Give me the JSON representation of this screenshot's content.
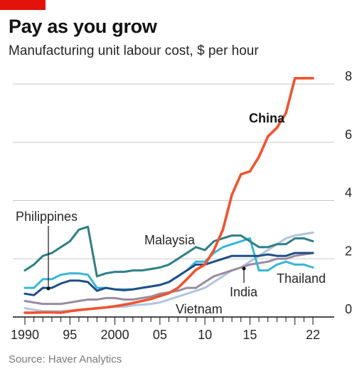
{
  "title": "Pay as you grow",
  "subtitle": "Manufacturing unit labour cost, $ per hour",
  "source": "Source: Haver Analytics",
  "colors": {
    "brand": "#e3120b",
    "China": "#f0532f",
    "Malaysia": "#2e7f86",
    "Philippines": "#1f4f86",
    "Thailand": "#3ab5d6",
    "India": "#9a8ba0",
    "Vietnam": "#b1c4de",
    "grid": "#c7c7c7"
  },
  "chart_data": {
    "type": "line",
    "title": "Pay as you grow",
    "ylabel": "Manufacturing unit labour cost, $ per hour",
    "xlim": [
      1990,
      2022
    ],
    "ylim": [
      0,
      8
    ],
    "yticks": [
      0,
      2,
      4,
      6,
      8
    ],
    "xticks": [
      1990,
      1995,
      2000,
      2005,
      2010,
      2015,
      2022
    ],
    "xtick_labels": [
      "1990",
      "95",
      "2000",
      "05",
      "10",
      "15",
      "22"
    ],
    "grid": true,
    "x": [
      1990,
      1991,
      1992,
      1993,
      1994,
      1995,
      1996,
      1997,
      1998,
      1999,
      2000,
      2001,
      2002,
      2003,
      2004,
      2005,
      2006,
      2007,
      2008,
      2009,
      2010,
      2011,
      2012,
      2013,
      2014,
      2015,
      2016,
      2017,
      2018,
      2019,
      2020,
      2021,
      2022
    ],
    "series": [
      {
        "name": "China",
        "values": [
          0.15,
          0.15,
          0.16,
          0.16,
          0.15,
          0.2,
          0.24,
          0.27,
          0.3,
          0.33,
          0.37,
          0.42,
          0.48,
          0.55,
          0.62,
          0.72,
          0.82,
          1.0,
          1.3,
          1.62,
          1.8,
          2.3,
          3.0,
          4.2,
          4.9,
          5.0,
          5.5,
          6.2,
          6.5,
          7.0,
          8.2,
          8.2,
          8.2
        ]
      },
      {
        "name": "Malaysia",
        "values": [
          1.6,
          1.8,
          2.1,
          2.2,
          2.4,
          2.6,
          3.0,
          3.1,
          1.4,
          1.5,
          1.55,
          1.55,
          1.6,
          1.6,
          1.65,
          1.7,
          1.8,
          2.0,
          2.2,
          2.4,
          2.3,
          2.6,
          2.7,
          2.8,
          2.8,
          2.6,
          2.4,
          2.4,
          2.5,
          2.5,
          2.7,
          2.7,
          2.6
        ]
      },
      {
        "name": "Philippines",
        "values": [
          0.8,
          0.75,
          1.0,
          1.0,
          1.15,
          1.25,
          1.25,
          1.2,
          0.9,
          1.0,
          0.95,
          0.92,
          0.95,
          1.0,
          1.05,
          1.1,
          1.2,
          1.4,
          1.6,
          1.8,
          1.8,
          1.9,
          2.0,
          2.1,
          2.1,
          2.1,
          2.1,
          2.15,
          2.1,
          2.1,
          2.2,
          2.2,
          2.2
        ]
      },
      {
        "name": "Thailand",
        "values": [
          1.0,
          1.0,
          1.3,
          1.3,
          1.45,
          1.5,
          1.5,
          1.45,
          1.0,
          1.0,
          0.95,
          0.95,
          0.95,
          1.0,
          1.05,
          1.1,
          1.2,
          1.4,
          1.6,
          1.9,
          1.9,
          2.2,
          2.4,
          2.5,
          2.6,
          2.7,
          1.6,
          1.6,
          1.8,
          1.9,
          1.8,
          1.8,
          1.7
        ]
      },
      {
        "name": "India",
        "values": [
          0.55,
          0.5,
          0.45,
          0.45,
          0.45,
          0.5,
          0.55,
          0.6,
          0.6,
          0.65,
          0.65,
          0.6,
          0.6,
          0.65,
          0.7,
          0.8,
          0.85,
          0.9,
          1.0,
          1.0,
          1.2,
          1.4,
          1.5,
          1.6,
          1.7,
          1.8,
          1.85,
          1.9,
          2.0,
          2.0,
          2.1,
          2.15,
          2.2
        ]
      },
      {
        "name": "Vietnam",
        "values": [
          0.3,
          0.25,
          0.2,
          0.2,
          0.2,
          0.22,
          0.25,
          0.28,
          0.3,
          0.32,
          0.35,
          0.35,
          0.4,
          0.42,
          0.45,
          0.5,
          0.6,
          0.7,
          0.8,
          0.9,
          1.0,
          1.2,
          1.4,
          1.6,
          1.7,
          1.9,
          2.1,
          2.3,
          2.5,
          2.7,
          2.8,
          2.85,
          2.9
        ]
      }
    ],
    "labels": {
      "China": "China",
      "Malaysia": "Malaysia",
      "Philippines": "Philippines",
      "Thailand": "Thailand",
      "India": "India",
      "Vietnam": "Vietnam"
    }
  }
}
